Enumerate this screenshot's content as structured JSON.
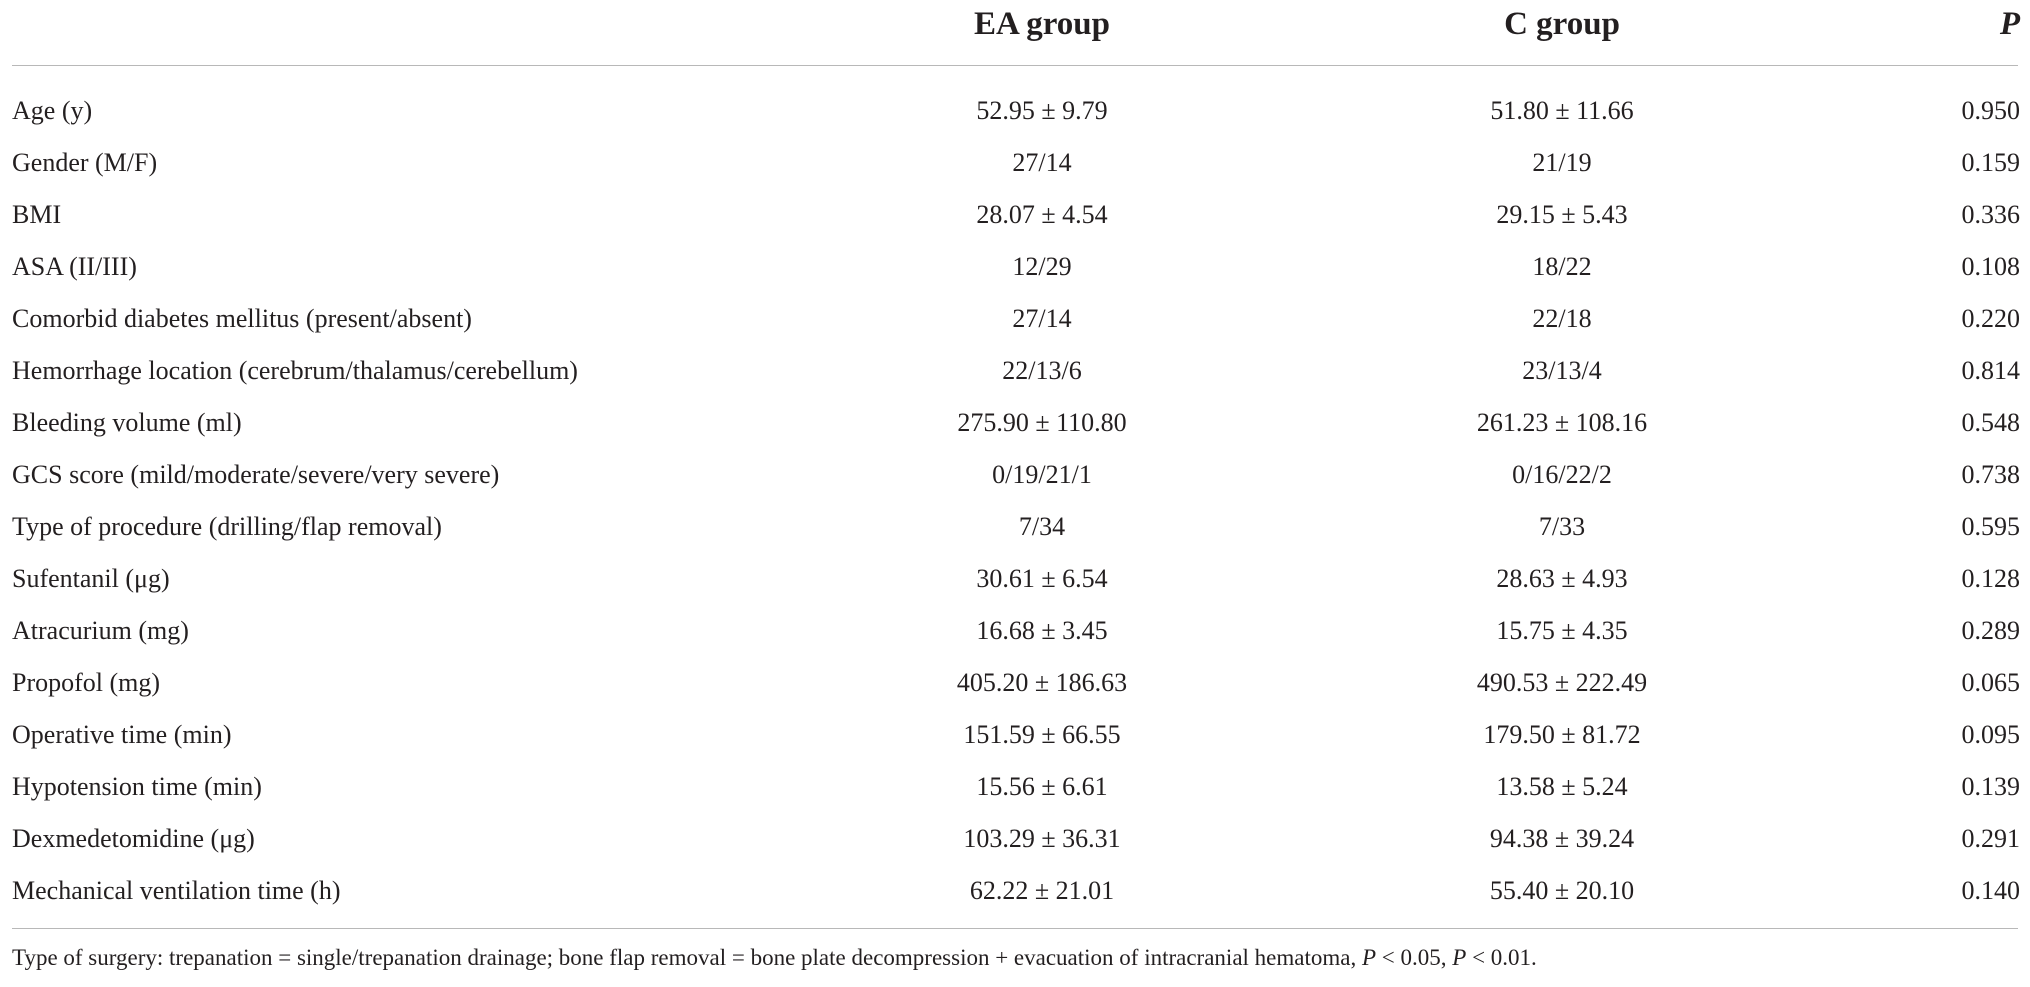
{
  "table": {
    "headers": [
      "",
      "EA group",
      "C group",
      "P"
    ],
    "rows": [
      {
        "label": "Age (y)",
        "ea": "52.95 ± 9.79",
        "c": "51.80 ± 11.66",
        "p": "0.950"
      },
      {
        "label": "Gender (M/F)",
        "ea": "27/14",
        "c": "21/19",
        "p": "0.159"
      },
      {
        "label": "BMI",
        "ea": "28.07 ± 4.54",
        "c": "29.15 ± 5.43",
        "p": "0.336"
      },
      {
        "label": "ASA (II/III)",
        "ea": "12/29",
        "c": "18/22",
        "p": "0.108"
      },
      {
        "label": "Comorbid diabetes mellitus (present/absent)",
        "ea": "27/14",
        "c": "22/18",
        "p": "0.220"
      },
      {
        "label": "Hemorrhage location (cerebrum/thalamus/cerebellum)",
        "ea": "22/13/6",
        "c": "23/13/4",
        "p": "0.814"
      },
      {
        "label": "Bleeding volume (ml)",
        "ea": "275.90 ± 110.80",
        "c": "261.23 ± 108.16",
        "p": "0.548"
      },
      {
        "label": "GCS score (mild/moderate/severe/very severe)",
        "ea": "0/19/21/1",
        "c": "0/16/22/2",
        "p": "0.738"
      },
      {
        "label": "Type of procedure (drilling/flap removal)",
        "ea": "7/34",
        "c": "7/33",
        "p": "0.595"
      },
      {
        "label": "Sufentanil (μg)",
        "ea": "30.61 ± 6.54",
        "c": "28.63 ± 4.93",
        "p": "0.128"
      },
      {
        "label": "Atracurium (mg)",
        "ea": "16.68 ± 3.45",
        "c": "15.75 ± 4.35",
        "p": "0.289"
      },
      {
        "label": "Propofol (mg)",
        "ea": "405.20 ± 186.63",
        "c": "490.53 ± 222.49",
        "p": "0.065"
      },
      {
        "label": "Operative time (min)",
        "ea": "151.59 ± 66.55",
        "c": "179.50 ± 81.72",
        "p": "0.095"
      },
      {
        "label": "Hypotension time (min)",
        "ea": "15.56 ± 6.61",
        "c": "13.58 ± 5.24",
        "p": "0.139"
      },
      {
        "label": "Dexmedetomidine (μg)",
        "ea": "103.29 ± 36.31",
        "c": "94.38 ± 39.24",
        "p": "0.291"
      },
      {
        "label": "Mechanical ventilation time (h)",
        "ea": "62.22 ± 21.01",
        "c": "55.40 ± 20.10",
        "p": "0.140"
      }
    ]
  },
  "footnote": {
    "text_1": "Type of surgery: trepanation = single/trepanation drainage; bone flap removal = bone plate decompression + evacuation of intracranial hematoma, ",
    "p_symbol": "P",
    "text_2": " < 0.05, ",
    "text_3": " < 0.01."
  }
}
